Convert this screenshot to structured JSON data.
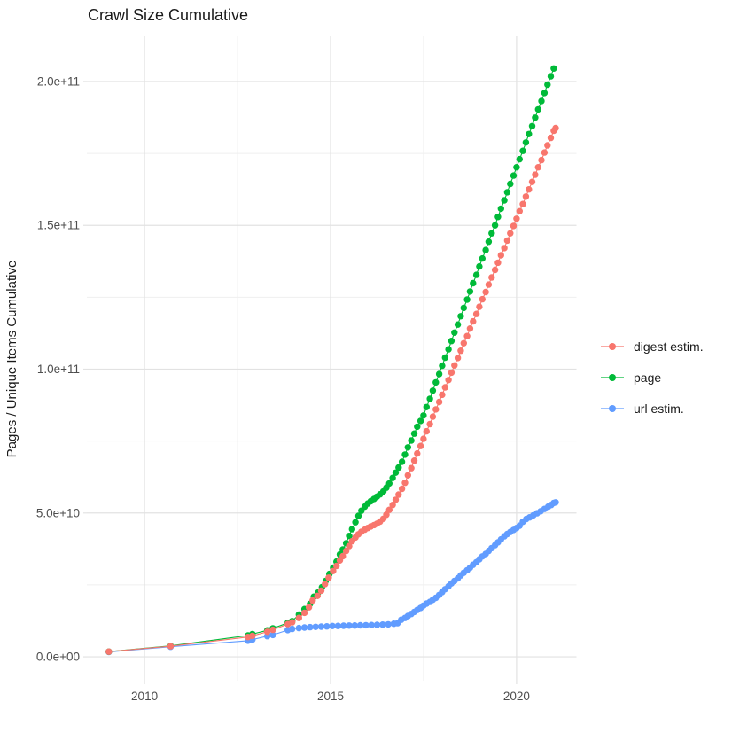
{
  "page": {
    "background": "#ffffff",
    "title": "Crawl Size Cumulative"
  },
  "chart_data": {
    "type": "scatter",
    "title": "Crawl Size Cumulative",
    "xlabel": "",
    "ylabel": "Pages / Unique Items Cumulative",
    "value_unit": "billions of pages (1e9)",
    "xlim": [
      2008.45,
      2021.61
    ],
    "ylim_e9": [
      -8.3,
      215.7
    ],
    "x_ticks": [
      {
        "v": 2010,
        "label": "2010"
      },
      {
        "v": 2015,
        "label": "2015"
      },
      {
        "v": 2020,
        "label": "2020"
      }
    ],
    "x_minor": [
      2012.5,
      2017.5
    ],
    "y_ticks": [
      {
        "v": 0,
        "label": "0.0e+00"
      },
      {
        "v": 50,
        "label": "5.0e+10"
      },
      {
        "v": 100,
        "label": "1.0e+11"
      },
      {
        "v": 150,
        "label": "1.5e+11"
      },
      {
        "v": 200,
        "label": "2.0e+11"
      }
    ],
    "y_minor": [
      25,
      75,
      125,
      175
    ],
    "grid": {
      "major_color": "#e2e2e2",
      "minor_color": "#efefef",
      "on": true
    },
    "axis_text_color": "#4d4d4d",
    "legend_position": "right",
    "draw_order": [
      2,
      1,
      0
    ],
    "series": [
      {
        "name": "digest estim.",
        "color": "#F8766D",
        "points": [
          [
            2009.04,
            1.8
          ],
          [
            2010.7,
            3.7
          ],
          [
            2012.78,
            6.9
          ],
          [
            2012.9,
            7.3
          ],
          [
            2013.3,
            8.7
          ],
          [
            2013.45,
            9.4
          ],
          [
            2013.85,
            11.4
          ],
          [
            2013.97,
            12.0
          ],
          [
            2014.15,
            13.5
          ],
          [
            2014.3,
            15.3
          ],
          [
            2014.42,
            17.2
          ],
          [
            2014.52,
            19.6
          ],
          [
            2014.65,
            21.2
          ],
          [
            2014.75,
            23.0
          ],
          [
            2014.85,
            25.3
          ],
          [
            2014.95,
            27.5
          ],
          [
            2015.07,
            29.8
          ],
          [
            2015.16,
            31.6
          ],
          [
            2015.25,
            33.5
          ],
          [
            2015.33,
            35.0
          ],
          [
            2015.42,
            36.8
          ],
          [
            2015.5,
            38.5
          ],
          [
            2015.58,
            40.2
          ],
          [
            2015.67,
            41.5
          ],
          [
            2015.75,
            42.6
          ],
          [
            2015.83,
            43.5
          ],
          [
            2015.92,
            44.2
          ],
          [
            2016.0,
            44.8
          ],
          [
            2016.08,
            45.3
          ],
          [
            2016.17,
            45.8
          ],
          [
            2016.25,
            46.3
          ],
          [
            2016.33,
            47.0
          ],
          [
            2016.42,
            48.0
          ],
          [
            2016.5,
            49.4
          ],
          [
            2016.58,
            51.1
          ],
          [
            2016.67,
            52.8
          ],
          [
            2016.75,
            54.6
          ],
          [
            2016.83,
            56.4
          ],
          [
            2016.92,
            58.4
          ],
          [
            2017.0,
            60.5
          ],
          [
            2017.08,
            63.1
          ],
          [
            2017.17,
            65.6
          ],
          [
            2017.25,
            68.2
          ],
          [
            2017.33,
            70.7
          ],
          [
            2017.42,
            73.3
          ],
          [
            2017.5,
            75.8
          ],
          [
            2017.58,
            78.4
          ],
          [
            2017.67,
            80.9
          ],
          [
            2017.75,
            83.5
          ],
          [
            2017.83,
            86.0
          ],
          [
            2017.92,
            88.6
          ],
          [
            2018.0,
            91.1
          ],
          [
            2018.08,
            93.7
          ],
          [
            2018.17,
            96.2
          ],
          [
            2018.25,
            98.8
          ],
          [
            2018.33,
            101.3
          ],
          [
            2018.42,
            103.9
          ],
          [
            2018.5,
            106.4
          ],
          [
            2018.58,
            109.0
          ],
          [
            2018.67,
            111.5
          ],
          [
            2018.75,
            114.1
          ],
          [
            2018.83,
            116.6
          ],
          [
            2018.92,
            119.2
          ],
          [
            2019.0,
            121.7
          ],
          [
            2019.08,
            124.3
          ],
          [
            2019.17,
            126.8
          ],
          [
            2019.25,
            129.4
          ],
          [
            2019.33,
            131.9
          ],
          [
            2019.42,
            134.5
          ],
          [
            2019.5,
            137.0
          ],
          [
            2019.58,
            139.6
          ],
          [
            2019.67,
            142.1
          ],
          [
            2019.75,
            144.7
          ],
          [
            2019.83,
            147.2
          ],
          [
            2019.92,
            149.8
          ],
          [
            2020.0,
            152.3
          ],
          [
            2020.08,
            154.9
          ],
          [
            2020.17,
            157.4
          ],
          [
            2020.25,
            160.0
          ],
          [
            2020.33,
            162.5
          ],
          [
            2020.42,
            165.1
          ],
          [
            2020.5,
            167.6
          ],
          [
            2020.58,
            170.2
          ],
          [
            2020.67,
            172.7
          ],
          [
            2020.75,
            175.3
          ],
          [
            2020.83,
            177.8
          ],
          [
            2020.92,
            180.4
          ],
          [
            2021.0,
            182.9
          ],
          [
            2021.05,
            183.8
          ]
        ]
      },
      {
        "name": "page",
        "color": "#00BA38",
        "points": [
          [
            2009.04,
            1.8
          ],
          [
            2010.7,
            3.8
          ],
          [
            2012.78,
            7.4
          ],
          [
            2012.9,
            7.9
          ],
          [
            2013.3,
            9.2
          ],
          [
            2013.45,
            9.9
          ],
          [
            2013.85,
            11.8
          ],
          [
            2013.97,
            12.4
          ],
          [
            2014.15,
            14.7
          ],
          [
            2014.3,
            16.6
          ],
          [
            2014.45,
            18.4
          ],
          [
            2014.55,
            20.9
          ],
          [
            2014.67,
            22.4
          ],
          [
            2014.77,
            24.2
          ],
          [
            2014.87,
            26.4
          ],
          [
            2014.97,
            28.8
          ],
          [
            2015.07,
            31.0
          ],
          [
            2015.16,
            33.1
          ],
          [
            2015.25,
            35.6
          ],
          [
            2015.33,
            37.3
          ],
          [
            2015.42,
            39.5
          ],
          [
            2015.5,
            42.0
          ],
          [
            2015.58,
            44.4
          ],
          [
            2015.67,
            46.8
          ],
          [
            2015.75,
            49.0
          ],
          [
            2015.83,
            50.8
          ],
          [
            2015.92,
            52.2
          ],
          [
            2016.0,
            53.3
          ],
          [
            2016.08,
            54.1
          ],
          [
            2016.17,
            54.9
          ],
          [
            2016.25,
            55.7
          ],
          [
            2016.33,
            56.5
          ],
          [
            2016.42,
            57.5
          ],
          [
            2016.5,
            58.8
          ],
          [
            2016.58,
            60.3
          ],
          [
            2016.67,
            62.2
          ],
          [
            2016.75,
            64.0
          ],
          [
            2016.83,
            65.8
          ],
          [
            2016.92,
            67.8
          ],
          [
            2017.0,
            70.3
          ],
          [
            2017.08,
            72.8
          ],
          [
            2017.17,
            75.2
          ],
          [
            2017.25,
            77.6
          ],
          [
            2017.33,
            80.0
          ],
          [
            2017.42,
            82.0
          ],
          [
            2017.5,
            83.9
          ],
          [
            2017.58,
            86.8
          ],
          [
            2017.67,
            89.7
          ],
          [
            2017.75,
            92.5
          ],
          [
            2017.83,
            95.4
          ],
          [
            2017.92,
            98.3
          ],
          [
            2018.0,
            101.2
          ],
          [
            2018.08,
            104.0
          ],
          [
            2018.17,
            106.9
          ],
          [
            2018.25,
            109.8
          ],
          [
            2018.33,
            112.7
          ],
          [
            2018.42,
            115.5
          ],
          [
            2018.5,
            118.4
          ],
          [
            2018.58,
            121.3
          ],
          [
            2018.67,
            124.2
          ],
          [
            2018.75,
            127.0
          ],
          [
            2018.83,
            129.9
          ],
          [
            2018.92,
            132.8
          ],
          [
            2019.0,
            135.7
          ],
          [
            2019.08,
            138.5
          ],
          [
            2019.17,
            141.4
          ],
          [
            2019.25,
            144.3
          ],
          [
            2019.33,
            147.2
          ],
          [
            2019.42,
            150.0
          ],
          [
            2019.5,
            152.9
          ],
          [
            2019.58,
            155.8
          ],
          [
            2019.67,
            158.7
          ],
          [
            2019.75,
            161.5
          ],
          [
            2019.83,
            164.4
          ],
          [
            2019.92,
            167.3
          ],
          [
            2020.0,
            170.2
          ],
          [
            2020.08,
            173.0
          ],
          [
            2020.17,
            175.9
          ],
          [
            2020.25,
            178.8
          ],
          [
            2020.33,
            181.7
          ],
          [
            2020.42,
            184.5
          ],
          [
            2020.5,
            187.4
          ],
          [
            2020.58,
            190.3
          ],
          [
            2020.67,
            193.2
          ],
          [
            2020.75,
            196.0
          ],
          [
            2020.83,
            198.9
          ],
          [
            2020.92,
            201.8
          ],
          [
            2021.0,
            204.5
          ]
        ]
      },
      {
        "name": "url estim.",
        "color": "#619CFF",
        "points": [
          [
            2009.04,
            1.7
          ],
          [
            2010.7,
            3.5
          ],
          [
            2012.78,
            5.6
          ],
          [
            2012.9,
            6.0
          ],
          [
            2013.3,
            7.2
          ],
          [
            2013.45,
            7.6
          ],
          [
            2013.85,
            9.3
          ],
          [
            2013.97,
            9.7
          ],
          [
            2014.15,
            10.0
          ],
          [
            2014.3,
            10.2
          ],
          [
            2014.45,
            10.3
          ],
          [
            2014.6,
            10.4
          ],
          [
            2014.75,
            10.5
          ],
          [
            2014.9,
            10.6
          ],
          [
            2015.05,
            10.7
          ],
          [
            2015.2,
            10.75
          ],
          [
            2015.35,
            10.8
          ],
          [
            2015.5,
            10.85
          ],
          [
            2015.65,
            10.9
          ],
          [
            2015.8,
            10.95
          ],
          [
            2015.95,
            11.0
          ],
          [
            2016.1,
            11.05
          ],
          [
            2016.25,
            11.1
          ],
          [
            2016.4,
            11.2
          ],
          [
            2016.55,
            11.3
          ],
          [
            2016.7,
            11.5
          ],
          [
            2016.8,
            11.7
          ],
          [
            2016.9,
            12.9
          ],
          [
            2017.0,
            13.5
          ],
          [
            2017.08,
            14.2
          ],
          [
            2017.17,
            14.9
          ],
          [
            2017.25,
            15.6
          ],
          [
            2017.33,
            16.3
          ],
          [
            2017.42,
            17.0
          ],
          [
            2017.5,
            17.8
          ],
          [
            2017.58,
            18.5
          ],
          [
            2017.67,
            19.1
          ],
          [
            2017.75,
            19.8
          ],
          [
            2017.83,
            20.5
          ],
          [
            2017.92,
            21.5
          ],
          [
            2018.0,
            22.5
          ],
          [
            2018.08,
            23.5
          ],
          [
            2018.17,
            24.5
          ],
          [
            2018.25,
            25.5
          ],
          [
            2018.33,
            26.4
          ],
          [
            2018.42,
            27.3
          ],
          [
            2018.5,
            28.3
          ],
          [
            2018.58,
            29.2
          ],
          [
            2018.67,
            30.1
          ],
          [
            2018.75,
            31.0
          ],
          [
            2018.83,
            32.0
          ],
          [
            2018.92,
            32.9
          ],
          [
            2019.0,
            33.9
          ],
          [
            2019.08,
            34.9
          ],
          [
            2019.17,
            35.8
          ],
          [
            2019.25,
            36.8
          ],
          [
            2019.33,
            37.8
          ],
          [
            2019.42,
            38.8
          ],
          [
            2019.5,
            39.8
          ],
          [
            2019.58,
            40.8
          ],
          [
            2019.67,
            41.9
          ],
          [
            2019.75,
            42.7
          ],
          [
            2019.83,
            43.4
          ],
          [
            2019.92,
            44.1
          ],
          [
            2020.0,
            44.8
          ],
          [
            2020.08,
            45.6
          ],
          [
            2020.17,
            46.9
          ],
          [
            2020.26,
            47.9
          ],
          [
            2020.35,
            48.5
          ],
          [
            2020.45,
            49.2
          ],
          [
            2020.55,
            49.9
          ],
          [
            2020.65,
            50.6
          ],
          [
            2020.75,
            51.4
          ],
          [
            2020.85,
            52.2
          ],
          [
            2020.93,
            52.8
          ],
          [
            2021.0,
            53.5
          ],
          [
            2021.05,
            53.7
          ]
        ]
      }
    ]
  }
}
